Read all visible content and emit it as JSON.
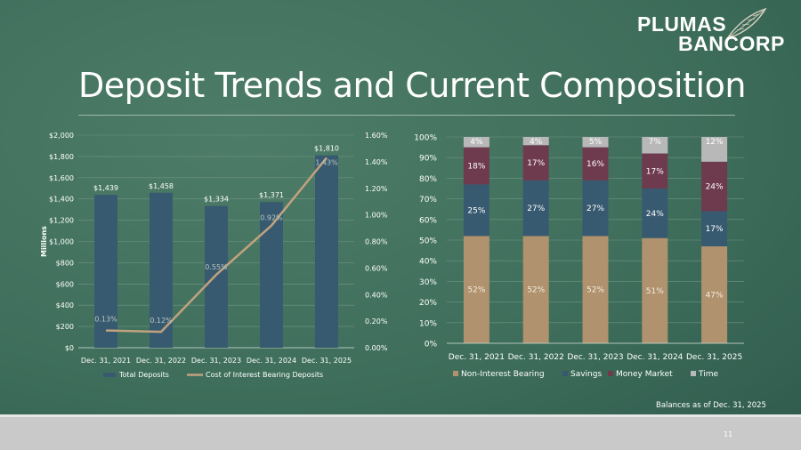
{
  "logo": {
    "line1": "PLUMAS",
    "line2": "BANCORP",
    "mark": "feather-leaf-icon"
  },
  "title": "Deposit Trends and Current Composition",
  "note": "Balances as of Dec. 31, 2025",
  "page_number": "11",
  "colors": {
    "bar": "#385a70",
    "line": "#c1a27e",
    "non_interest": "#b0926e",
    "savings": "#385a70",
    "money_market": "#6e3a4e",
    "time": "#b8b8b8"
  },
  "chart_data": [
    {
      "type": "bar",
      "categories": [
        "Dec. 31, 2021",
        "Dec. 31, 2022",
        "Dec. 31, 2023",
        "Dec. 31, 2024",
        "Dec. 31, 2025"
      ],
      "series": [
        {
          "name": "Total Deposits",
          "values": [
            1439,
            1458,
            1334,
            1371,
            1810
          ],
          "labels": [
            "$1,439",
            "$1,458",
            "$1,334",
            "$1,371",
            "$1,810"
          ],
          "axis": "left"
        },
        {
          "name": "Cost of Interest Bearing Deposits",
          "type": "line",
          "values": [
            0.13,
            0.12,
            0.55,
            0.92,
            1.43
          ],
          "labels": [
            "0.13%",
            "0.12%",
            "0.55%",
            "0.92%",
            "1.43%"
          ],
          "axis": "right"
        }
      ],
      "ylabel": "Millions",
      "ylim": [
        0,
        2000
      ],
      "yticks": [
        "$0",
        "$200",
        "$400",
        "$600",
        "$800",
        "$1,000",
        "$1,200",
        "$1,400",
        "$1,600",
        "$1,800",
        "$2,000"
      ],
      "y2lim": [
        0,
        1.6
      ],
      "y2ticks": [
        "0.00%",
        "0.20%",
        "0.40%",
        "0.60%",
        "0.80%",
        "1.00%",
        "1.20%",
        "1.40%",
        "1.60%"
      ],
      "legend": [
        "Total Deposits",
        "Cost of Interest Bearing Deposits"
      ],
      "legend_position": "bottom",
      "grid": true
    },
    {
      "type": "bar",
      "stacked": true,
      "categories": [
        "Dec. 31, 2021",
        "Dec. 31, 2022",
        "Dec. 31, 2023",
        "Dec. 31, 2024",
        "Dec. 31, 2025"
      ],
      "series": [
        {
          "name": "Non-Interest Bearing",
          "values": [
            52,
            52,
            52,
            51,
            47
          ],
          "labels": [
            "52%",
            "52%",
            "52%",
            "51%",
            "47%"
          ]
        },
        {
          "name": "Savings",
          "values": [
            25,
            27,
            27,
            24,
            17
          ],
          "labels": [
            "25%",
            "27%",
            "27%",
            "24%",
            "17%"
          ]
        },
        {
          "name": "Money Market",
          "values": [
            18,
            17,
            16,
            17,
            24
          ],
          "labels": [
            "18%",
            "17%",
            "16%",
            "17%",
            "24%"
          ]
        },
        {
          "name": "Time",
          "values": [
            4,
            4,
            5,
            7,
            12
          ],
          "labels": [
            "4%",
            "4%",
            "5%",
            "7%",
            "12%"
          ]
        }
      ],
      "ylim": [
        0,
        100
      ],
      "yticks": [
        "0%",
        "10%",
        "20%",
        "30%",
        "40%",
        "50%",
        "60%",
        "70%",
        "80%",
        "90%",
        "100%"
      ],
      "legend": [
        "Non-Interest Bearing",
        "Savings",
        "Money Market",
        "Time"
      ],
      "legend_position": "bottom",
      "grid": true
    }
  ]
}
